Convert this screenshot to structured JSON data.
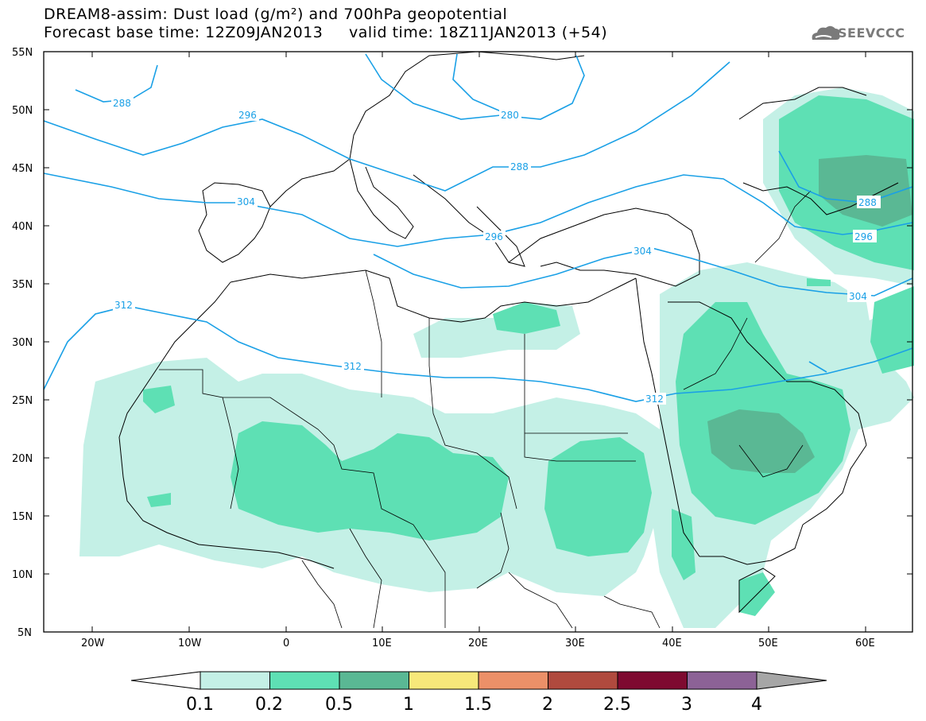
{
  "header": {
    "title_line1": "DREAM8-assim: Dust load (g/m²) and 700hPa geopotential",
    "title_line2": "Forecast base time: 12Z09JAN2013     valid time: 18Z11JAN2013 (+54)"
  },
  "logo": {
    "text": "SEEVCCC",
    "icon": "cloud-icon"
  },
  "axes": {
    "lat_labels": [
      "55N",
      "50N",
      "45N",
      "40N",
      "35N",
      "30N",
      "25N",
      "20N",
      "15N",
      "10N",
      "5N"
    ],
    "lon_labels": [
      "20W",
      "10W",
      "0",
      "10E",
      "20E",
      "30E",
      "40E",
      "50E",
      "60E"
    ]
  },
  "contours": {
    "labels": [
      "288",
      "296",
      "280",
      "288",
      "304",
      "296",
      "304",
      "312",
      "312",
      "288",
      "296",
      "304",
      "312"
    ]
  },
  "colorbar": {
    "ticks": [
      "0.1",
      "0.2",
      "0.5",
      "1",
      "1.5",
      "2",
      "2.5",
      "3",
      "4"
    ],
    "colors": [
      "#c4f0e6",
      "#5ee0b4",
      "#5ab894",
      "#f7e87a",
      "#ec9068",
      "#b04a3e",
      "#7e0a30",
      "#8c6296",
      "#a6a6a6"
    ]
  },
  "colors": {
    "contour": "#1aa0e6",
    "dust_01": "#c4f0e6",
    "dust_02": "#5ee0b4",
    "dust_05": "#5ab894"
  }
}
